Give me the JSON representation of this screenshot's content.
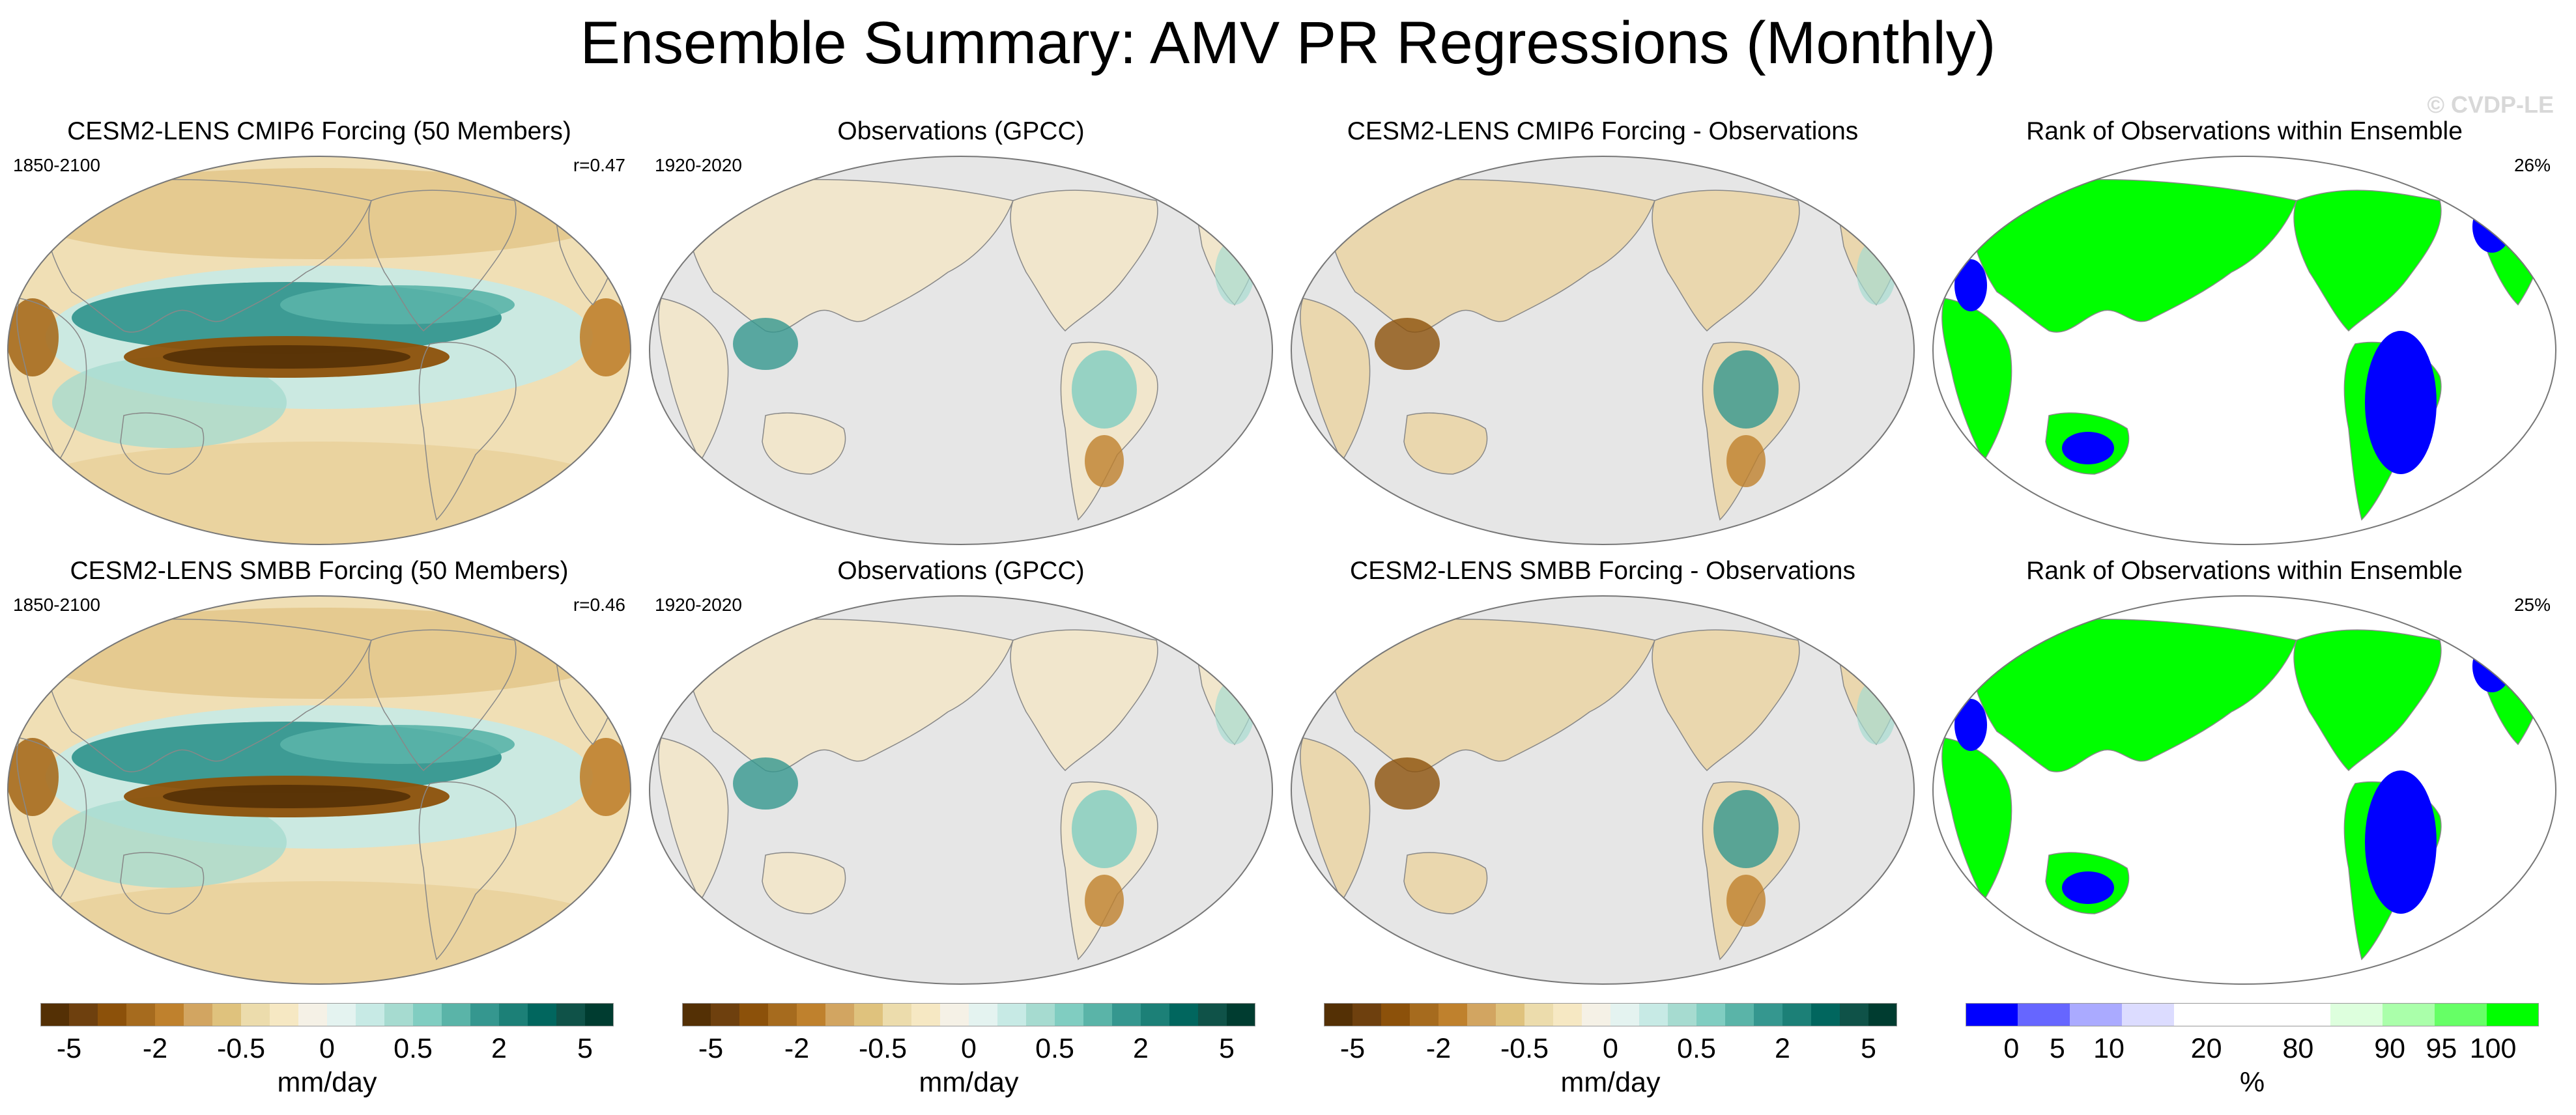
{
  "title": "Ensemble Summary: AMV PR Regressions (Monthly)",
  "watermark": "© CVDP-LE",
  "rows": [
    {
      "panels": [
        {
          "title": "CESM2-LENS CMIP6 Forcing (50 Members)",
          "left": "1850-2100",
          "right": "r=0.47",
          "kind": "model"
        },
        {
          "title": "Observations (GPCC)",
          "left": "1920-2020",
          "right": "",
          "kind": "obs"
        },
        {
          "title": "CESM2-LENS CMIP6 Forcing - Observations",
          "left": "",
          "right": "",
          "kind": "diff"
        },
        {
          "title": "Rank of Observations within Ensemble",
          "left": "",
          "right": "26%",
          "kind": "rank"
        }
      ]
    },
    {
      "panels": [
        {
          "title": "CESM2-LENS SMBB Forcing (50 Members)",
          "left": "1850-2100",
          "right": "r=0.46",
          "kind": "model"
        },
        {
          "title": "Observations (GPCC)",
          "left": "1920-2020",
          "right": "",
          "kind": "obs"
        },
        {
          "title": "CESM2-LENS SMBB Forcing - Observations",
          "left": "",
          "right": "",
          "kind": "diff"
        },
        {
          "title": "Rank of Observations within Ensemble",
          "left": "",
          "right": "25%",
          "kind": "rank"
        }
      ]
    }
  ],
  "colorbars": [
    {
      "labels": [
        "-5",
        "-2",
        "-0.5",
        "0",
        "0.5",
        "2",
        "5"
      ],
      "unit": "mm/day",
      "palette": "brbg"
    },
    {
      "labels": [
        "-5",
        "-2",
        "-0.5",
        "0",
        "0.5",
        "2",
        "5"
      ],
      "unit": "mm/day",
      "palette": "brbg"
    },
    {
      "labels": [
        "-5",
        "-2",
        "-0.5",
        "0",
        "0.5",
        "2",
        "5"
      ],
      "unit": "mm/day",
      "palette": "brbg"
    },
    {
      "labels": [
        "0",
        "5",
        "10",
        "20",
        "80",
        "90",
        "95",
        "100"
      ],
      "unit": "%",
      "palette": "rank"
    }
  ],
  "colors": {
    "brbg": [
      "#543005",
      "#6e400e",
      "#8c510a",
      "#a66b1e",
      "#bf812d",
      "#d2a561",
      "#dfc27d",
      "#ecdcac",
      "#f6e8c3",
      "#f5f1e6",
      "#e4f3f0",
      "#c7eae5",
      "#a6dbd0",
      "#80cdc1",
      "#5ab4a8",
      "#35978f",
      "#1c8077",
      "#01665e",
      "#0f5248",
      "#003c30"
    ],
    "rank": [
      "#0000ff",
      "#6666ff",
      "#aaaaff",
      "#dcdcff",
      "#ffffff",
      "#ffffff",
      "#ffffff",
      "#ddffdd",
      "#aaffaa",
      "#66ff66",
      "#00ff00"
    ],
    "land": "#d0d0d0",
    "ocean_missing": "#e6e6e6"
  }
}
